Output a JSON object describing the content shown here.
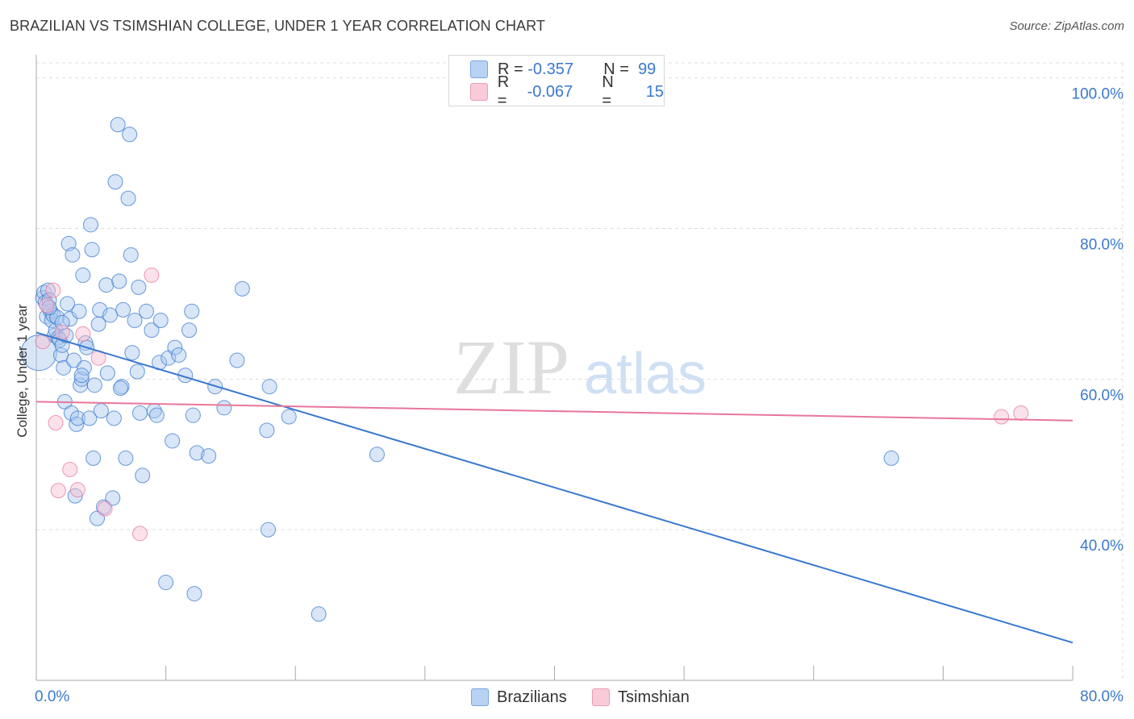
{
  "header": {
    "title": "BRAZILIAN VS TSIMSHIAN COLLEGE, UNDER 1 YEAR CORRELATION CHART",
    "source": "Source: ZipAtlas.com"
  },
  "legend": {
    "items": [
      {
        "r_label": "R =",
        "r_value": "-0.357",
        "n_label": "N =",
        "n_value": "99"
      },
      {
        "r_label": "R =",
        "r_value": "-0.067",
        "n_label": "N =",
        "n_value": "15"
      }
    ]
  },
  "bottom_legend": {
    "series1": "Brazilians",
    "series2": "Tsimshian"
  },
  "watermark": {
    "zip": "ZIP",
    "atlas": "atlas"
  },
  "colors": {
    "blue": "#3a78cf",
    "blue_fill": "#a9c8f0",
    "pink": "#e8769a",
    "pink_fill": "#f7bfd0",
    "grid": "#dddddd"
  },
  "chart_data": {
    "type": "scatter",
    "title": "BRAZILIAN VS TSIMSHIAN COLLEGE, UNDER 1 YEAR CORRELATION CHART",
    "xlabel": "",
    "ylabel": "College, Under 1 year",
    "xlim": [
      0,
      80
    ],
    "ylim": [
      20,
      102
    ],
    "x_tick_labels": [
      "0.0%",
      "80.0%"
    ],
    "y_ticks": [
      40,
      60,
      80,
      100
    ],
    "y_tick_labels": [
      "40.0%",
      "60.0%",
      "80.0%",
      "100.0%"
    ],
    "series": [
      {
        "name": "Brazilians",
        "R": -0.357,
        "N": 99,
        "trend": {
          "x": [
            0,
            80
          ],
          "y": [
            66.2,
            25.0
          ]
        },
        "points": [
          [
            0.2,
            63.5
          ],
          [
            0.5,
            70.8
          ],
          [
            0.6,
            71.5
          ],
          [
            0.7,
            70.2
          ],
          [
            0.8,
            68.3
          ],
          [
            0.9,
            71.8
          ],
          [
            1.0,
            70.5
          ],
          [
            1.1,
            69.0
          ],
          [
            1.2,
            67.8
          ],
          [
            1.3,
            68.5
          ],
          [
            1.4,
            65.8
          ],
          [
            1.5,
            66.5
          ],
          [
            1.6,
            68.2
          ],
          [
            1.7,
            65.5
          ],
          [
            1.8,
            65.2
          ],
          [
            1.9,
            63.2
          ],
          [
            2.0,
            64.5
          ],
          [
            2.1,
            61.5
          ],
          [
            2.2,
            57.0
          ],
          [
            2.3,
            65.8
          ],
          [
            2.4,
            70.0
          ],
          [
            2.5,
            78.0
          ],
          [
            2.6,
            68.0
          ],
          [
            2.7,
            55.5
          ],
          [
            2.8,
            76.5
          ],
          [
            2.9,
            62.5
          ],
          [
            3.0,
            44.5
          ],
          [
            3.1,
            54.0
          ],
          [
            3.2,
            54.8
          ],
          [
            3.3,
            69.0
          ],
          [
            3.4,
            59.2
          ],
          [
            3.5,
            60.0
          ],
          [
            3.6,
            73.8
          ],
          [
            3.7,
            61.5
          ],
          [
            3.8,
            64.8
          ],
          [
            3.9,
            64.2
          ],
          [
            4.1,
            54.8
          ],
          [
            4.2,
            80.5
          ],
          [
            4.3,
            77.2
          ],
          [
            4.4,
            49.5
          ],
          [
            4.5,
            59.2
          ],
          [
            4.7,
            41.5
          ],
          [
            4.8,
            67.3
          ],
          [
            4.9,
            69.2
          ],
          [
            5.0,
            55.8
          ],
          [
            5.2,
            43.0
          ],
          [
            5.4,
            72.5
          ],
          [
            5.5,
            60.8
          ],
          [
            5.7,
            68.5
          ],
          [
            5.9,
            44.2
          ],
          [
            6.0,
            54.8
          ],
          [
            6.1,
            86.2
          ],
          [
            6.3,
            93.8
          ],
          [
            6.4,
            73.0
          ],
          [
            6.6,
            59.0
          ],
          [
            6.7,
            69.2
          ],
          [
            6.9,
            49.5
          ],
          [
            7.1,
            84.0
          ],
          [
            7.2,
            92.5
          ],
          [
            7.3,
            76.5
          ],
          [
            7.4,
            63.5
          ],
          [
            7.6,
            67.8
          ],
          [
            7.9,
            72.2
          ],
          [
            8.0,
            55.5
          ],
          [
            8.2,
            47.2
          ],
          [
            8.5,
            69.0
          ],
          [
            8.9,
            66.5
          ],
          [
            9.1,
            55.8
          ],
          [
            9.3,
            55.2
          ],
          [
            9.5,
            62.2
          ],
          [
            9.6,
            67.8
          ],
          [
            10.0,
            33.0
          ],
          [
            10.2,
            62.8
          ],
          [
            10.5,
            51.8
          ],
          [
            10.7,
            64.2
          ],
          [
            11.0,
            63.2
          ],
          [
            11.8,
            66.5
          ],
          [
            12.0,
            69.0
          ],
          [
            12.1,
            55.2
          ],
          [
            12.2,
            31.5
          ],
          [
            12.4,
            50.2
          ],
          [
            13.3,
            49.8
          ],
          [
            13.8,
            59.0
          ],
          [
            14.5,
            56.2
          ],
          [
            15.5,
            62.5
          ],
          [
            15.9,
            72.0
          ],
          [
            17.8,
            53.2
          ],
          [
            17.9,
            40.0
          ],
          [
            18.0,
            59.0
          ],
          [
            19.5,
            55.0
          ],
          [
            21.8,
            28.8
          ],
          [
            26.3,
            50.0
          ],
          [
            66.0,
            49.5
          ],
          [
            3.5,
            60.5
          ],
          [
            2.0,
            67.5
          ],
          [
            1.0,
            69.5
          ],
          [
            6.5,
            58.8
          ],
          [
            11.5,
            60.5
          ],
          [
            7.8,
            61.0
          ]
        ]
      },
      {
        "name": "Tsimshian",
        "R": -0.067,
        "N": 15,
        "trend": {
          "x": [
            0,
            80
          ],
          "y": [
            57.0,
            54.5
          ]
        },
        "points": [
          [
            0.5,
            65.0
          ],
          [
            0.8,
            69.8
          ],
          [
            1.3,
            71.8
          ],
          [
            1.5,
            54.2
          ],
          [
            1.7,
            45.2
          ],
          [
            2.0,
            66.2
          ],
          [
            2.6,
            48.0
          ],
          [
            3.2,
            45.3
          ],
          [
            3.6,
            66.0
          ],
          [
            4.8,
            62.8
          ],
          [
            5.3,
            42.8
          ],
          [
            8.0,
            39.5
          ],
          [
            8.9,
            73.8
          ],
          [
            74.5,
            55.0
          ],
          [
            76.0,
            55.5
          ]
        ]
      }
    ]
  }
}
